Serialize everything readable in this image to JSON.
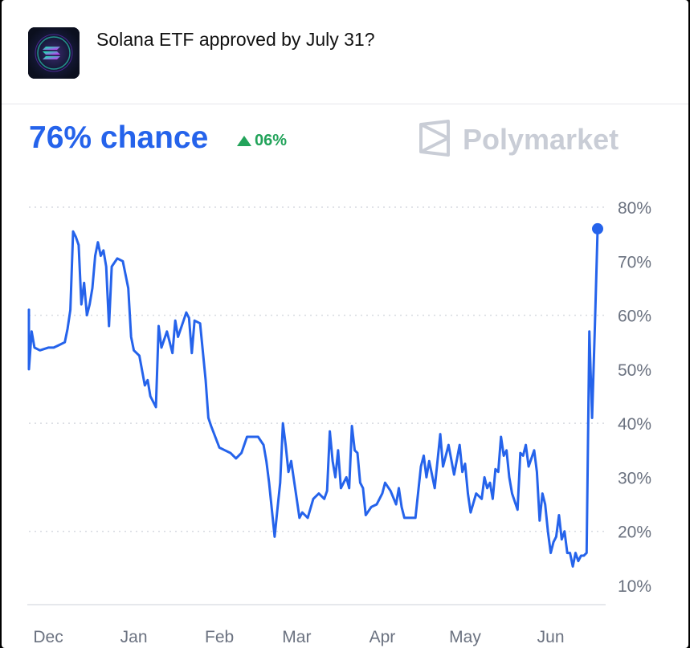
{
  "market": {
    "title": "Solana ETF approved by July 31?",
    "icon": "solana-logo-icon",
    "chance_text": "76% chance",
    "change_text": "06%",
    "change_direction": "up",
    "brand": "Polymarket",
    "brand_icon": "polymarket-logo-icon"
  },
  "colors": {
    "line": "#2563eb",
    "positive": "#22a35a",
    "grid": "#d7dae0",
    "axis_text": "#6b7280"
  },
  "chart_data": {
    "type": "line",
    "title": "",
    "xlabel": "",
    "ylabel": "",
    "ylim": [
      10,
      80
    ],
    "y_ticks": [
      80,
      70,
      60,
      50,
      40,
      30,
      20,
      10
    ],
    "y_tick_labels": [
      "80%",
      "70%",
      "60%",
      "50%",
      "40%",
      "30%",
      "20%",
      "10%"
    ],
    "gridlines": [
      20,
      40,
      60,
      80
    ],
    "x_ticks": [
      {
        "label": "Dec",
        "x": "2024-12-01"
      },
      {
        "label": "Jan",
        "x": "2025-01-01"
      },
      {
        "label": "Feb",
        "x": "2025-02-01"
      },
      {
        "label": "Mar",
        "x": "2025-03-01"
      },
      {
        "label": "Apr",
        "x": "2025-04-01"
      },
      {
        "label": "May",
        "x": "2025-05-01"
      },
      {
        "label": "Jun",
        "x": "2025-06-01"
      }
    ],
    "xlim": [
      "2024-11-24",
      "2025-06-18"
    ],
    "series": [
      {
        "points": [
          [
            "2024-11-24",
            61
          ],
          [
            "2024-11-24",
            50
          ],
          [
            "2024-11-25",
            57
          ],
          [
            "2024-11-26",
            54
          ],
          [
            "2024-11-28",
            53.5
          ],
          [
            "2024-12-01",
            54
          ],
          [
            "2024-12-03",
            54
          ],
          [
            "2024-12-05",
            54.5
          ],
          [
            "2024-12-07",
            55
          ],
          [
            "2024-12-08",
            57.5
          ],
          [
            "2024-12-09",
            61
          ],
          [
            "2024-12-10",
            75.5
          ],
          [
            "2024-12-11",
            74.5
          ],
          [
            "2024-12-12",
            73
          ],
          [
            "2024-12-13",
            62
          ],
          [
            "2024-12-14",
            66
          ],
          [
            "2024-12-15",
            60
          ],
          [
            "2024-12-16",
            62
          ],
          [
            "2024-12-17",
            65
          ],
          [
            "2024-12-18",
            71
          ],
          [
            "2024-12-19",
            73.5
          ],
          [
            "2024-12-20",
            71
          ],
          [
            "2024-12-21",
            72
          ],
          [
            "2024-12-22",
            69
          ],
          [
            "2024-12-23",
            58
          ],
          [
            "2024-12-24",
            69
          ],
          [
            "2024-12-26",
            70.5
          ],
          [
            "2024-12-28",
            70
          ],
          [
            "2024-12-30",
            65
          ],
          [
            "2024-12-31",
            56
          ],
          [
            "2025-01-01",
            53.5
          ],
          [
            "2025-01-03",
            52.5
          ],
          [
            "2025-01-05",
            47
          ],
          [
            "2025-01-06",
            48
          ],
          [
            "2025-01-07",
            45
          ],
          [
            "2025-01-09",
            43
          ],
          [
            "2025-01-10",
            58
          ],
          [
            "2025-01-11",
            54
          ],
          [
            "2025-01-13",
            57
          ],
          [
            "2025-01-14",
            55
          ],
          [
            "2025-01-15",
            53
          ],
          [
            "2025-01-16",
            59
          ],
          [
            "2025-01-17",
            56
          ],
          [
            "2025-01-19",
            59
          ],
          [
            "2025-01-20",
            60.5
          ],
          [
            "2025-01-21",
            59.5
          ],
          [
            "2025-01-22",
            53
          ],
          [
            "2025-01-23",
            59
          ],
          [
            "2025-01-25",
            58.5
          ],
          [
            "2025-01-27",
            48
          ],
          [
            "2025-01-28",
            41
          ],
          [
            "2025-01-29",
            39.5
          ],
          [
            "2025-02-01",
            35.5
          ],
          [
            "2025-02-03",
            35
          ],
          [
            "2025-02-05",
            34.5
          ],
          [
            "2025-02-07",
            33.5
          ],
          [
            "2025-02-09",
            34.5
          ],
          [
            "2025-02-11",
            37.5
          ],
          [
            "2025-02-13",
            37.5
          ],
          [
            "2025-02-15",
            37.5
          ],
          [
            "2025-02-17",
            36
          ],
          [
            "2025-02-18",
            33
          ],
          [
            "2025-02-19",
            29
          ],
          [
            "2025-02-21",
            19
          ],
          [
            "2025-02-22",
            24
          ],
          [
            "2025-02-23",
            29
          ],
          [
            "2025-02-24",
            40
          ],
          [
            "2025-02-25",
            36
          ],
          [
            "2025-02-26",
            31
          ],
          [
            "2025-02-27",
            33
          ],
          [
            "2025-03-01",
            26
          ],
          [
            "2025-03-02",
            22.5
          ],
          [
            "2025-03-03",
            23.5
          ],
          [
            "2025-03-05",
            22.5
          ],
          [
            "2025-03-07",
            26
          ],
          [
            "2025-03-09",
            27
          ],
          [
            "2025-03-11",
            26
          ],
          [
            "2025-03-12",
            27.5
          ],
          [
            "2025-03-13",
            38.5
          ],
          [
            "2025-03-14",
            33
          ],
          [
            "2025-03-15",
            30
          ],
          [
            "2025-03-16",
            35
          ],
          [
            "2025-03-17",
            28
          ],
          [
            "2025-03-19",
            30
          ],
          [
            "2025-03-20",
            28
          ],
          [
            "2025-03-21",
            39.5
          ],
          [
            "2025-03-22",
            35
          ],
          [
            "2025-03-23",
            34.5
          ],
          [
            "2025-03-24",
            29
          ],
          [
            "2025-03-25",
            28
          ],
          [
            "2025-03-26",
            23
          ],
          [
            "2025-03-28",
            24.5
          ],
          [
            "2025-03-30",
            25
          ],
          [
            "2025-04-01",
            27
          ],
          [
            "2025-04-02",
            29
          ],
          [
            "2025-04-04",
            27.5
          ],
          [
            "2025-04-06",
            25
          ],
          [
            "2025-04-07",
            28
          ],
          [
            "2025-04-08",
            24.5
          ],
          [
            "2025-04-09",
            22.5
          ],
          [
            "2025-04-11",
            22.5
          ],
          [
            "2025-04-13",
            22.5
          ],
          [
            "2025-04-15",
            32
          ],
          [
            "2025-04-16",
            34
          ],
          [
            "2025-04-17",
            30
          ],
          [
            "2025-04-18",
            33
          ],
          [
            "2025-04-20",
            28
          ],
          [
            "2025-04-22",
            38
          ],
          [
            "2025-04-23",
            32
          ],
          [
            "2025-04-24",
            34
          ],
          [
            "2025-04-25",
            36
          ],
          [
            "2025-04-27",
            30.5
          ],
          [
            "2025-04-29",
            36
          ],
          [
            "2025-04-30",
            31
          ],
          [
            "2025-05-01",
            32.5
          ],
          [
            "2025-05-02",
            27
          ],
          [
            "2025-05-03",
            23.5
          ],
          [
            "2025-05-05",
            27
          ],
          [
            "2025-05-07",
            26
          ],
          [
            "2025-05-08",
            30
          ],
          [
            "2025-05-09",
            28
          ],
          [
            "2025-05-10",
            29
          ],
          [
            "2025-05-11",
            26
          ],
          [
            "2025-05-12",
            31.5
          ],
          [
            "2025-05-13",
            31
          ],
          [
            "2025-05-14",
            37.5
          ],
          [
            "2025-05-15",
            34
          ],
          [
            "2025-05-16",
            35
          ],
          [
            "2025-05-17",
            30
          ],
          [
            "2025-05-18",
            27
          ],
          [
            "2025-05-20",
            24
          ],
          [
            "2025-05-21",
            34.5
          ],
          [
            "2025-05-22",
            34
          ],
          [
            "2025-05-23",
            36
          ],
          [
            "2025-05-24",
            32
          ],
          [
            "2025-05-26",
            35
          ],
          [
            "2025-05-27",
            31
          ],
          [
            "2025-05-28",
            22
          ],
          [
            "2025-05-29",
            27
          ],
          [
            "2025-05-30",
            25
          ],
          [
            "2025-05-31",
            20
          ],
          [
            "2025-06-01",
            16
          ],
          [
            "2025-06-02",
            18
          ],
          [
            "2025-06-03",
            19
          ],
          [
            "2025-06-04",
            23
          ],
          [
            "2025-06-05",
            18.5
          ],
          [
            "2025-06-06",
            20
          ],
          [
            "2025-06-07",
            16
          ],
          [
            "2025-06-08",
            16
          ],
          [
            "2025-06-09",
            13.5
          ],
          [
            "2025-06-10",
            16
          ],
          [
            "2025-06-11",
            14.5
          ],
          [
            "2025-06-12",
            15.5
          ],
          [
            "2025-06-13",
            15.5
          ],
          [
            "2025-06-14",
            16
          ],
          [
            "2025-06-15",
            57
          ],
          [
            "2025-06-16",
            41
          ],
          [
            "2025-06-17",
            58
          ],
          [
            "2025-06-18",
            76
          ]
        ],
        "end_value": 76
      }
    ]
  }
}
